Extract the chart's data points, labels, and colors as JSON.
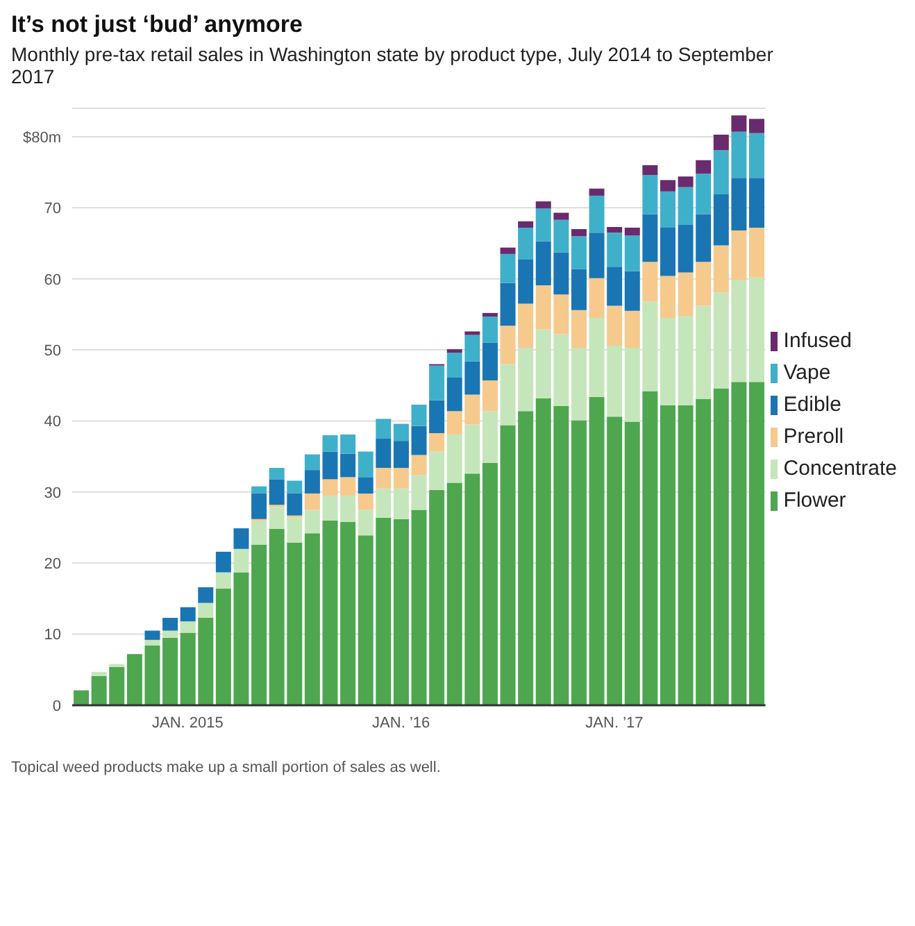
{
  "chart_data": {
    "type": "bar",
    "title": "It’s not just ‘bud’ anymore",
    "subtitle": "Monthly pre-tax retail sales in Washington state by product type, July 2014 to September 2017",
    "categories": [
      null,
      null,
      null,
      null,
      null,
      null,
      "JAN. 2015",
      null,
      null,
      null,
      null,
      null,
      null,
      null,
      null,
      null,
      null,
      null,
      "JAN. ’16",
      null,
      null,
      null,
      null,
      null,
      null,
      null,
      null,
      null,
      null,
      null,
      "JAN. ’17",
      null,
      null,
      null,
      null,
      null,
      null,
      null,
      null
    ],
    "stacked": true,
    "series": [
      {
        "name": "Flower",
        "color": "#4ea64f",
        "values": [
          2.1,
          4.1,
          5.4,
          7.2,
          8.4,
          9.5,
          10.2,
          12.3,
          16.4,
          18.7,
          22.6,
          24.8,
          22.9,
          24.2,
          26.0,
          25.8,
          23.9,
          26.4,
          26.2,
          27.5,
          30.3,
          31.3,
          32.6,
          34.1,
          39.4,
          41.4,
          43.2,
          42.1,
          40.1,
          43.4,
          40.6,
          39.9,
          44.2,
          42.2,
          42.2,
          43.1,
          44.6,
          45.5,
          45.5
        ]
      },
      {
        "name": "Concentrate",
        "color": "#c5e6bb",
        "values": [
          0,
          0.6,
          0.4,
          null,
          0.8,
          1.0,
          1.6,
          2.1,
          2.3,
          3.3,
          3.3,
          3.1,
          3.5,
          3.3,
          3.5,
          3.7,
          3.6,
          4.1,
          4.3,
          4.9,
          5.4,
          6.8,
          6.9,
          7.3,
          8.6,
          8.9,
          9.7,
          10.1,
          10.2,
          11.1,
          10.0,
          10.4,
          12.6,
          12.3,
          12.6,
          13.1,
          13.5,
          14.3,
          14.7
        ]
      },
      {
        "name": "Preroll",
        "color": "#f6c98d",
        "values": [
          0,
          0,
          0,
          0,
          0,
          0,
          0,
          0,
          0,
          0,
          0.3,
          0.3,
          0.3,
          2.3,
          2.3,
          2.6,
          2.3,
          2.9,
          2.9,
          2.8,
          2.6,
          3.3,
          4.2,
          4.3,
          5.4,
          6.2,
          6.2,
          5.6,
          5.3,
          5.6,
          5.6,
          5.2,
          5.6,
          5.9,
          6.1,
          6.2,
          6.6,
          7.0,
          7.0
        ]
      },
      {
        "name": "Edible",
        "color": "#1a75b3",
        "values": [
          0,
          0,
          0,
          0,
          1.3,
          1.8,
          2.0,
          2.2,
          2.9,
          2.9,
          3.6,
          3.6,
          3.1,
          3.3,
          3.9,
          3.3,
          2.3,
          4.1,
          3.8,
          4.1,
          4.6,
          4.7,
          4.7,
          5.3,
          6.0,
          6.2,
          6.2,
          5.9,
          5.8,
          6.4,
          5.5,
          5.6,
          6.7,
          6.8,
          6.7,
          6.7,
          7.2,
          7.4,
          7.0
        ]
      },
      {
        "name": "Vape",
        "color": "#3fb0c9",
        "values": [
          0,
          0,
          0,
          0,
          0,
          0,
          0,
          0,
          0,
          0,
          1.0,
          1.6,
          1.8,
          2.2,
          2.3,
          2.7,
          3.6,
          2.8,
          2.4,
          3.0,
          4.9,
          3.5,
          3.7,
          3.7,
          4.1,
          4.5,
          4.6,
          4.6,
          4.6,
          5.2,
          4.8,
          5.0,
          5.5,
          5.1,
          5.3,
          5.7,
          6.2,
          6.5,
          6.3
        ]
      },
      {
        "name": "Infused",
        "color": "#6a2a6e",
        "values": [
          0,
          0,
          0,
          0,
          0,
          0,
          0,
          0,
          0,
          0,
          0,
          0,
          0,
          0,
          0,
          0,
          0,
          0,
          0,
          0,
          0.2,
          0.5,
          0.5,
          0.5,
          0.9,
          0.9,
          1.0,
          1.0,
          1.0,
          1.0,
          0.8,
          1.1,
          1.4,
          1.6,
          1.5,
          1.9,
          2.2,
          2.3,
          2.0
        ]
      }
    ],
    "ylim": [
      0,
      84
    ],
    "yticks": [
      0,
      10,
      20,
      30,
      40,
      50,
      60,
      70,
      {
        "value": 80,
        "label": "$80m"
      }
    ],
    "grid": "y",
    "legend": "right",
    "annotations": [
      "Topical weed products make up a small portion of sales as well."
    ]
  }
}
